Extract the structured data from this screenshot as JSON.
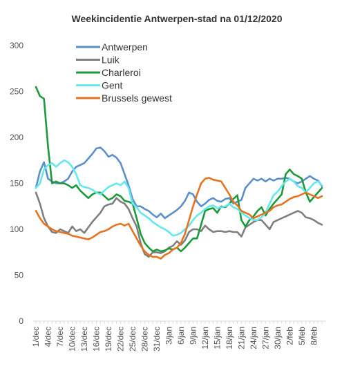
{
  "chart_data": {
    "type": "line",
    "title": "Weekincidentie  Antwerpen-stad na 01/12/2020",
    "xlabel": "",
    "ylabel": "",
    "ylim": [
      0,
      300
    ],
    "yticks": [
      0,
      50,
      100,
      150,
      200,
      250,
      300
    ],
    "grid": false,
    "legend_position": "top-left inside plot",
    "x_tick_labels": [
      "1/dec",
      "4/dec",
      "7/dec",
      "10/dec",
      "13/dec",
      "16/dec",
      "19/dec",
      "22/dec",
      "25/dec",
      "28/dec",
      "31/dec",
      "3/jan",
      "6/jan",
      "9/jan",
      "12/jan",
      "15/jan",
      "18/jan",
      "21/jan",
      "24/jan",
      "27/jan",
      "30/jan",
      "2/feb",
      "5/feb",
      "8/feb"
    ],
    "x_count": 72,
    "series": [
      {
        "name": "Antwerpen",
        "color": "#5B8FC9",
        "values": [
          145,
          163,
          173,
          155,
          152,
          150,
          150,
          152,
          155,
          163,
          168,
          170,
          172,
          177,
          182,
          188,
          189,
          185,
          179,
          181,
          178,
          172,
          160,
          148,
          133,
          125,
          125,
          122,
          120,
          116,
          113,
          117,
          112,
          115,
          118,
          121,
          125,
          131,
          140,
          138,
          130,
          125,
          128,
          132,
          134,
          131,
          130,
          133,
          134,
          128,
          130,
          132,
          145,
          150,
          155,
          153,
          155,
          152,
          155,
          153,
          155,
          155,
          156,
          155,
          152,
          150,
          152,
          155,
          158,
          155,
          153,
          147
        ]
      },
      {
        "name": "Luik",
        "color": "#7F7F7F",
        "values": [
          140,
          128,
          112,
          103,
          97,
          96,
          100,
          98,
          96,
          103,
          98,
          100,
          96,
          102,
          108,
          113,
          118,
          125,
          127,
          128,
          134,
          130,
          128,
          122,
          112,
          103,
          85,
          73,
          70,
          75,
          75,
          74,
          76,
          80,
          82,
          87,
          83,
          88,
          97,
          100,
          100,
          98,
          104,
          100,
          97,
          98,
          98,
          97,
          98,
          97,
          97,
          92,
          102,
          105,
          108,
          110,
          110,
          105,
          100,
          108,
          110,
          112,
          114,
          116,
          118,
          120,
          118,
          113,
          112,
          110,
          107,
          105
        ]
      },
      {
        "name": "Charleroi",
        "color": "#1A9A3A",
        "values": [
          255,
          245,
          242,
          190,
          150,
          152,
          150,
          150,
          148,
          145,
          148,
          142,
          138,
          134,
          138,
          140,
          140,
          136,
          132,
          134,
          138,
          136,
          131,
          130,
          128,
          112,
          95,
          85,
          80,
          76,
          78,
          76,
          77,
          79,
          78,
          80,
          76,
          80,
          85,
          90,
          90,
          105,
          120,
          122,
          123,
          118,
          125,
          124,
          128,
          133,
          137,
          110,
          103,
          110,
          114,
          120,
          124,
          115,
          122,
          128,
          133,
          138,
          160,
          165,
          160,
          158,
          155,
          140,
          130,
          135,
          140,
          145
        ]
      },
      {
        "name": "Gent",
        "color": "#63E8EE",
        "values": [
          145,
          150,
          165,
          170,
          172,
          168,
          172,
          175,
          173,
          168,
          160,
          148,
          146,
          145,
          143,
          140,
          138,
          142,
          146,
          148,
          150,
          148,
          152,
          145,
          128,
          124,
          118,
          115,
          112,
          108,
          105,
          102,
          100,
          97,
          93,
          94,
          96,
          100,
          104,
          110,
          115,
          118,
          122,
          125,
          126,
          123,
          124,
          125,
          128,
          124,
          122,
          118,
          115,
          112,
          110,
          110,
          113,
          118,
          128,
          137,
          141,
          147,
          152,
          155,
          152,
          147,
          145,
          140,
          145,
          150,
          152,
          148
        ]
      },
      {
        "name": "Brussels gewest",
        "color": "#E57320",
        "values": [
          120,
          112,
          106,
          103,
          100,
          98,
          97,
          96,
          95,
          93,
          92,
          91,
          90,
          89,
          91,
          94,
          97,
          98,
          100,
          103,
          105,
          106,
          104,
          106,
          98,
          90,
          82,
          76,
          72,
          70,
          70,
          68,
          72,
          74,
          78,
          80,
          85,
          95,
          110,
          125,
          138,
          150,
          155,
          156,
          154,
          153,
          152,
          145,
          138,
          130,
          126,
          120,
          118,
          116,
          112,
          114,
          116,
          118,
          120,
          124,
          126,
          127,
          130,
          133,
          135,
          136,
          138,
          140,
          138,
          136,
          134,
          136
        ]
      }
    ]
  }
}
